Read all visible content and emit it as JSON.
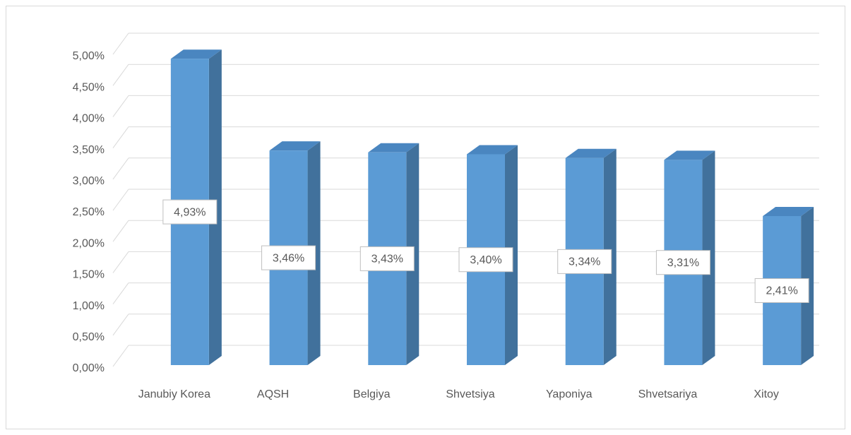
{
  "chart_data": {
    "type": "bar3d",
    "categories": [
      "Janubiy Korea",
      "AQSH",
      "Belgiya",
      "Shvetsiya",
      "Yaponiya",
      "Shvetsariya",
      "Xitoy"
    ],
    "values": [
      4.93,
      3.46,
      3.43,
      3.4,
      3.34,
      3.31,
      2.41
    ],
    "value_labels": [
      "4,93%",
      "3,46%",
      "3,43%",
      "3,40%",
      "3,34%",
      "3,31%",
      "2,41%"
    ],
    "color": "#5b9bd5",
    "ylim": [
      0,
      5
    ],
    "yticks": [
      {
        "value": 0,
        "label": "0,00%"
      },
      {
        "value": 0.5,
        "label": "0,50%"
      },
      {
        "value": 1,
        "label": "1,00%"
      },
      {
        "value": 1.5,
        "label": "1,50%"
      },
      {
        "value": 2,
        "label": "2,00%"
      },
      {
        "value": 2.5,
        "label": "2,50%"
      },
      {
        "value": 3,
        "label": "3,00%"
      },
      {
        "value": 3.5,
        "label": "3,50%"
      },
      {
        "value": 4,
        "label": "4,00%"
      },
      {
        "value": 4.5,
        "label": "4,50%"
      },
      {
        "value": 5,
        "label": "5,00%"
      }
    ],
    "grid": true
  }
}
